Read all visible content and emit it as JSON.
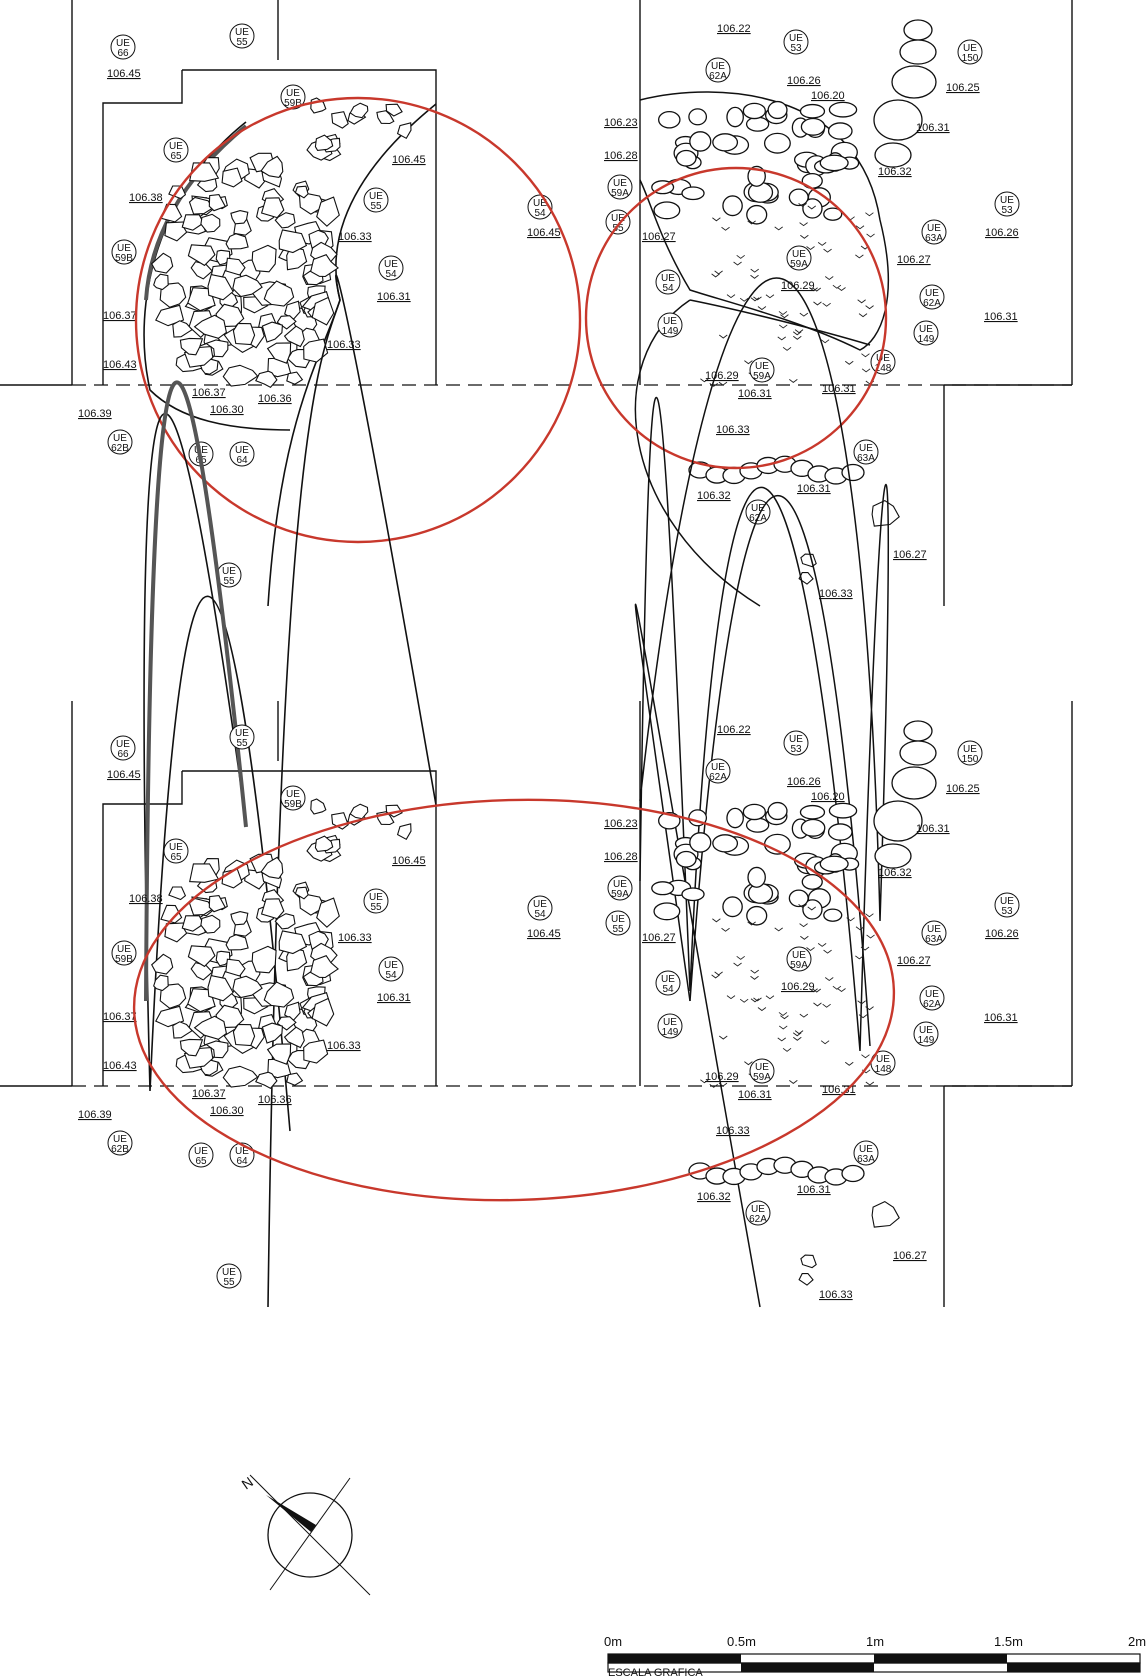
{
  "figure": {
    "panel_top_annotation": "circles",
    "panel_bottom_annotation": "ellipse",
    "accent_color": "#c8382c",
    "line_color": "#111111",
    "ue_labels": [
      {
        "l1": "UE",
        "l2": "66"
      },
      {
        "l1": "UE",
        "l2": "55"
      },
      {
        "l1": "UE",
        "l2": "59B"
      },
      {
        "l1": "UE",
        "l2": "65"
      },
      {
        "l1": "UE",
        "l2": "55"
      },
      {
        "l1": "UE",
        "l2": "54"
      },
      {
        "l1": "UE",
        "l2": "59B"
      },
      {
        "l1": "UE",
        "l2": "54"
      },
      {
        "l1": "UE",
        "l2": "62B"
      },
      {
        "l1": "UE",
        "l2": "65"
      },
      {
        "l1": "UE",
        "l2": "64"
      },
      {
        "l1": "UE",
        "l2": "55"
      },
      {
        "l1": "UE",
        "l2": "53"
      },
      {
        "l1": "UE",
        "l2": "62A"
      },
      {
        "l1": "UE",
        "l2": "150"
      },
      {
        "l1": "UE",
        "l2": "59A"
      },
      {
        "l1": "UE",
        "l2": "55"
      },
      {
        "l1": "UE",
        "l2": "53"
      },
      {
        "l1": "UE",
        "l2": "63A"
      },
      {
        "l1": "UE",
        "l2": "59A"
      },
      {
        "l1": "UE",
        "l2": "54"
      },
      {
        "l1": "UE",
        "l2": "62A"
      },
      {
        "l1": "UE",
        "l2": "149"
      },
      {
        "l1": "UE",
        "l2": "149"
      },
      {
        "l1": "UE",
        "l2": "148"
      },
      {
        "l1": "UE",
        "l2": "59A"
      },
      {
        "l1": "UE",
        "l2": "63A"
      },
      {
        "l1": "UE",
        "l2": "62A"
      }
    ],
    "levels": [
      "106.45",
      "106.38",
      "106.37",
      "106.43",
      "106.39",
      "106.37",
      "106.36",
      "106.30",
      "106.33",
      "106.33",
      "106.45",
      "106.31",
      "106.45",
      "106.22",
      "106.26",
      "106.20",
      "106.23",
      "106.28",
      "106.27",
      "106.25",
      "106.31",
      "106.32",
      "106.26",
      "106.27",
      "106.29",
      "106.31",
      "106.29",
      "106.31",
      "106.31",
      "106.33",
      "106.32",
      "106.31",
      "106.27",
      "106.33"
    ]
  },
  "north_arrow": {
    "label": "N"
  },
  "scale_bar": {
    "ticks": [
      "0m",
      "0.5m",
      "1m",
      "1.5m",
      "2m"
    ],
    "caption": "ESCALA GRAFICA"
  }
}
